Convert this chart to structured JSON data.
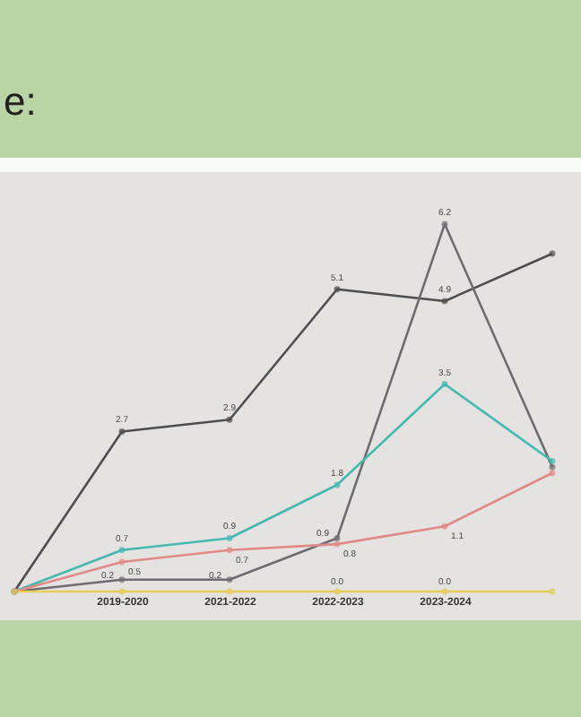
{
  "chart_data": {
    "type": "line",
    "title": "e:",
    "categories": [
      null,
      "2019-2020",
      "2021-2022",
      "2022-2023",
      "2023-2024",
      null
    ],
    "series": [
      {
        "color": "#4d4d4f",
        "values": [
          0,
          2.7,
          2.9,
          5.1,
          4.9,
          5.7
        ],
        "value_labels": [
          null,
          "2.7",
          "2.9",
          "5.1",
          "4.9",
          null
        ]
      },
      {
        "color": "#6e6b70",
        "values": [
          0,
          0.2,
          0.2,
          0.9,
          6.2,
          2.1
        ],
        "value_labels": [
          null,
          "0.2",
          "0.2",
          "0.9",
          "6.2",
          null
        ]
      },
      {
        "color": "#45b8b2",
        "values": [
          0,
          0.7,
          0.9,
          1.8,
          3.5,
          2.2
        ],
        "value_labels": [
          null,
          "0.7",
          "0.9",
          "1.8",
          "3.5",
          null
        ]
      },
      {
        "color": "#e08a86",
        "values": [
          0,
          0.5,
          0.7,
          0.8,
          1.1,
          2.0
        ],
        "value_labels": [
          null,
          "0.5",
          "0.7",
          "0.8",
          "1.1",
          null
        ]
      },
      {
        "color": "#e6cc5a",
        "values": [
          0,
          0,
          0,
          0,
          0,
          0
        ],
        "value_labels": [
          null,
          null,
          null,
          "0.0",
          "0.0",
          null
        ]
      }
    ],
    "marker": "circle",
    "line_style": "solid",
    "grid": false,
    "legend": false
  }
}
